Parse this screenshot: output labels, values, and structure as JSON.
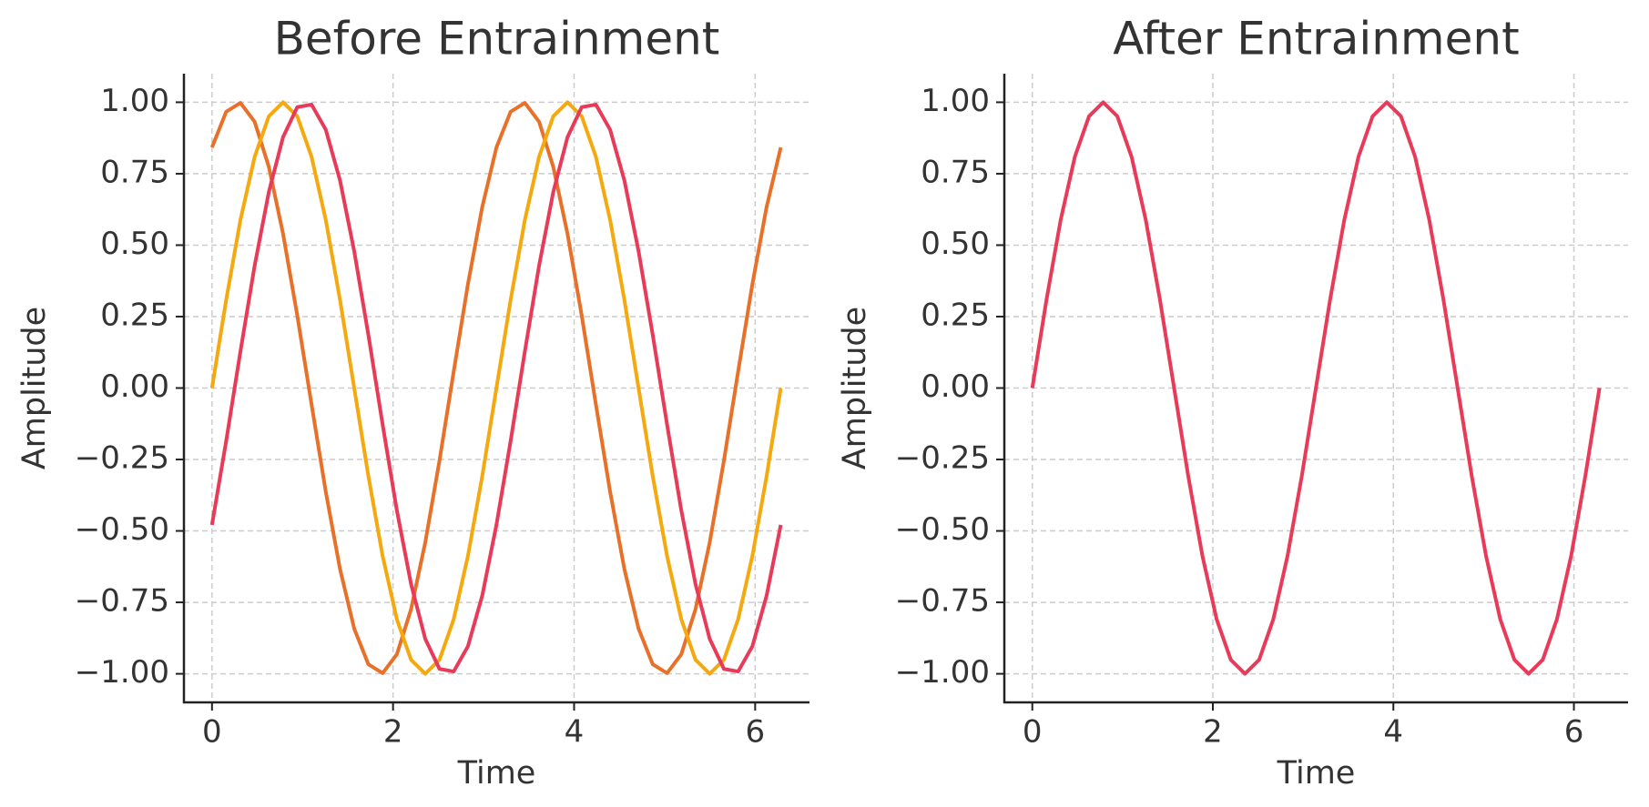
{
  "chart_data": [
    {
      "type": "line",
      "title": "Before Entrainment",
      "xlabel": "Time",
      "ylabel": "Amplitude",
      "x": [
        0,
        0.157,
        0.314,
        0.471,
        0.628,
        0.785,
        0.942,
        1.1,
        1.257,
        1.414,
        1.571,
        1.728,
        1.885,
        2.042,
        2.199,
        2.356,
        2.513,
        2.67,
        2.827,
        2.985,
        3.142,
        3.299,
        3.456,
        3.613,
        3.77,
        3.927,
        4.084,
        4.241,
        4.398,
        4.555,
        4.712,
        4.869,
        5.027,
        5.184,
        5.341,
        5.498,
        5.655,
        5.812,
        5.969,
        6.126,
        6.283
      ],
      "series": [
        {
          "color": "#e8712a",
          "values": [
            0.842,
            0.967,
            0.998,
            0.932,
            0.774,
            0.54,
            0.254,
            -0.058,
            -0.363,
            -0.633,
            -0.842,
            -0.967,
            -0.998,
            -0.932,
            -0.774,
            -0.54,
            -0.254,
            0.058,
            0.363,
            0.633,
            0.842,
            0.967,
            0.998,
            0.932,
            0.774,
            0.54,
            0.254,
            -0.058,
            -0.363,
            -0.633,
            -0.842,
            -0.967,
            -0.998,
            -0.932,
            -0.774,
            -0.54,
            -0.254,
            0.058,
            0.363,
            0.633,
            0.842
          ]
        },
        {
          "color": "#f5a90f",
          "values": [
            0,
            0.309,
            0.588,
            0.809,
            0.951,
            1,
            0.951,
            0.809,
            0.588,
            0.309,
            0,
            -0.309,
            -0.588,
            -0.809,
            -0.951,
            -1,
            -0.951,
            -0.809,
            -0.588,
            -0.309,
            0,
            0.309,
            0.588,
            0.809,
            0.951,
            1,
            0.951,
            0.809,
            0.588,
            0.309,
            0,
            -0.309,
            -0.588,
            -0.809,
            -0.951,
            -1,
            -0.951,
            -0.809,
            -0.588,
            -0.309,
            0
          ]
        },
        {
          "color": "#e83a59",
          "values": [
            -0.479,
            -0.185,
            0.128,
            0.428,
            0.686,
            0.878,
            0.983,
            0.992,
            0.904,
            0.727,
            0.479,
            0.185,
            -0.128,
            -0.428,
            -0.686,
            -0.878,
            -0.983,
            -0.992,
            -0.904,
            -0.727,
            -0.479,
            -0.185,
            0.128,
            0.428,
            0.686,
            0.878,
            0.983,
            0.992,
            0.904,
            0.727,
            0.479,
            0.185,
            -0.128,
            -0.428,
            -0.686,
            -0.878,
            -0.983,
            -0.992,
            -0.904,
            -0.727,
            -0.479
          ]
        }
      ],
      "xlim": [
        -0.31,
        6.6
      ],
      "xticks": [
        0,
        2,
        4,
        6
      ],
      "ylim": [
        -1.1,
        1.1
      ],
      "yticks": [
        {
          "value": -1,
          "label": "−1.00"
        },
        {
          "value": -0.75,
          "label": "−0.75"
        },
        {
          "value": -0.5,
          "label": "−0.50"
        },
        {
          "value": -0.25,
          "label": "−0.25"
        },
        {
          "value": 0,
          "label": "0.00"
        },
        {
          "value": 0.25,
          "label": "0.25"
        },
        {
          "value": 0.5,
          "label": "0.50"
        },
        {
          "value": 0.75,
          "label": "0.75"
        },
        {
          "value": 1,
          "label": "1.00"
        }
      ],
      "grid": true
    },
    {
      "type": "line",
      "title": "After Entrainment",
      "xlabel": "Time",
      "ylabel": "Amplitude",
      "x": [
        0,
        0.157,
        0.314,
        0.471,
        0.628,
        0.785,
        0.942,
        1.1,
        1.257,
        1.414,
        1.571,
        1.728,
        1.885,
        2.042,
        2.199,
        2.356,
        2.513,
        2.67,
        2.827,
        2.985,
        3.142,
        3.299,
        3.456,
        3.613,
        3.77,
        3.927,
        4.084,
        4.241,
        4.398,
        4.555,
        4.712,
        4.869,
        5.027,
        5.184,
        5.341,
        5.498,
        5.655,
        5.812,
        5.969,
        6.126,
        6.283
      ],
      "series": [
        {
          "color": "#e83a59",
          "values": [
            0,
            0.309,
            0.588,
            0.809,
            0.951,
            1,
            0.951,
            0.809,
            0.588,
            0.309,
            0,
            -0.309,
            -0.588,
            -0.809,
            -0.951,
            -1,
            -0.951,
            -0.809,
            -0.588,
            -0.309,
            0,
            0.309,
            0.588,
            0.809,
            0.951,
            1,
            0.951,
            0.809,
            0.588,
            0.309,
            0,
            -0.309,
            -0.588,
            -0.809,
            -0.951,
            -1,
            -0.951,
            -0.809,
            -0.588,
            -0.309,
            0
          ]
        }
      ],
      "xlim": [
        -0.31,
        6.6
      ],
      "xticks": [
        0,
        2,
        4,
        6
      ],
      "ylim": [
        -1.1,
        1.1
      ],
      "yticks": [
        {
          "value": -1,
          "label": "−1.00"
        },
        {
          "value": -0.75,
          "label": "−0.75"
        },
        {
          "value": -0.5,
          "label": "−0.50"
        },
        {
          "value": -0.25,
          "label": "−0.25"
        },
        {
          "value": 0,
          "label": "0.00"
        },
        {
          "value": 0.25,
          "label": "0.25"
        },
        {
          "value": 0.5,
          "label": "0.50"
        },
        {
          "value": 0.75,
          "label": "0.75"
        },
        {
          "value": 1,
          "label": "1.00"
        }
      ],
      "grid": true
    }
  ]
}
